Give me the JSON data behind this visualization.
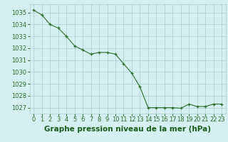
{
  "x": [
    0,
    1,
    2,
    3,
    4,
    5,
    6,
    7,
    8,
    9,
    10,
    11,
    12,
    13,
    14,
    15,
    16,
    17,
    18,
    19,
    20,
    21,
    22,
    23
  ],
  "y": [
    1035.2,
    1034.8,
    1034.0,
    1033.7,
    1033.0,
    1032.2,
    1031.85,
    1031.5,
    1031.65,
    1031.65,
    1031.5,
    1030.7,
    1029.9,
    1028.75,
    1027.0,
    1027.0,
    1027.0,
    1027.0,
    1026.95,
    1027.3,
    1027.1,
    1027.1,
    1027.3,
    1027.3
  ],
  "line_color": "#2d6e2d",
  "marker_color": "#2d6e2d",
  "bg_color": "#d4f0f0",
  "grid_color": "#aacece",
  "title": "Graphe pression niveau de la mer (hPa)",
  "title_color": "#1a5c1a",
  "ylim": [
    1026.5,
    1035.7
  ],
  "xlim": [
    -0.5,
    23.5
  ],
  "yticks": [
    1027,
    1028,
    1029,
    1030,
    1031,
    1032,
    1033,
    1034,
    1035
  ],
  "xticks": [
    0,
    1,
    2,
    3,
    4,
    5,
    6,
    7,
    8,
    9,
    10,
    11,
    12,
    13,
    14,
    15,
    16,
    17,
    18,
    19,
    20,
    21,
    22,
    23
  ],
  "title_fontsize": 7.5,
  "tick_fontsize": 6.0,
  "title_fontweight": "bold"
}
